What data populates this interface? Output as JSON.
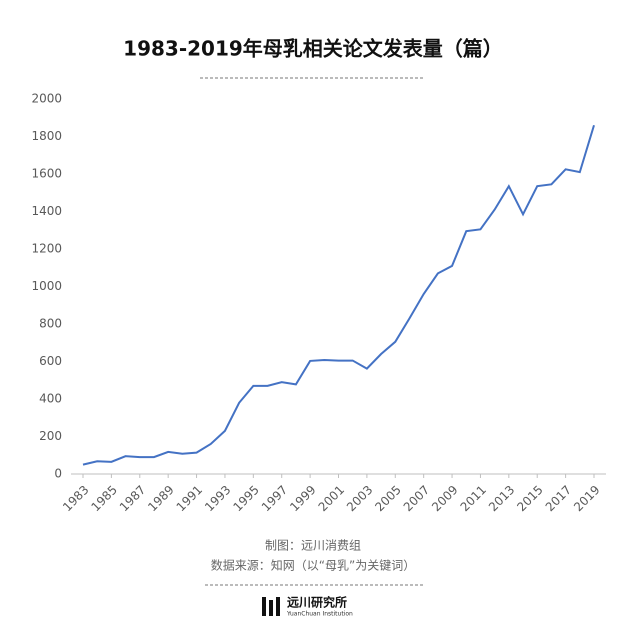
{
  "chart_data": {
    "type": "line",
    "title": "1983-2019年母乳相关论文发表量（篇）",
    "x": [
      1983,
      1984,
      1985,
      1986,
      1987,
      1988,
      1989,
      1990,
      1991,
      1992,
      1993,
      1994,
      1995,
      1996,
      1997,
      1998,
      1999,
      2000,
      2001,
      2002,
      2003,
      2004,
      2005,
      2006,
      2007,
      2008,
      2009,
      2010,
      2011,
      2012,
      2013,
      2014,
      2015,
      2016,
      2017,
      2018,
      2019
    ],
    "series": [
      {
        "name": "论文发表量",
        "color": "#4472c4",
        "values": [
          50,
          68,
          65,
          95,
          90,
          90,
          118,
          108,
          114,
          160,
          230,
          380,
          470,
          470,
          490,
          478,
          603,
          608,
          605,
          605,
          562,
          640,
          705,
          830,
          960,
          1070,
          1110,
          1295,
          1305,
          1410,
          1535,
          1385,
          1535,
          1545,
          1625,
          1610,
          1860
        ]
      }
    ],
    "xlim": [
      1983,
      2019
    ],
    "xticks": [
      1983,
      1985,
      1987,
      1989,
      1991,
      1993,
      1995,
      1997,
      1999,
      2001,
      2003,
      2005,
      2007,
      2009,
      2011,
      2013,
      2015,
      2017,
      2019
    ],
    "ylim": [
      0,
      2000
    ],
    "yticks": [
      0,
      200,
      400,
      600,
      800,
      1000,
      1200,
      1400,
      1600,
      1800,
      2000
    ],
    "grid": false,
    "annotations": [
      "制图：远川消费组",
      "数据来源：知网（以“母乳”为关键词）",
      "远川研究所",
      "YuanChuan Institution"
    ]
  }
}
